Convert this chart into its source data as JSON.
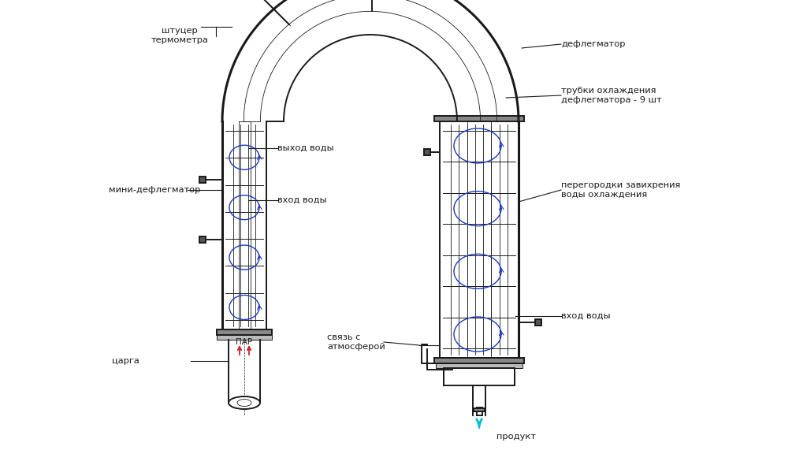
{
  "bg_color": "#ffffff",
  "line_color": "#1a1a1a",
  "blue_color": "#1a3bbf",
  "red_color": "#cc2222",
  "cyan_color": "#00bcd4",
  "labels": {
    "shtucer": "штуцер\nтермометра",
    "deflegmator": "дефлегматор",
    "mini_defleg": "мини-дефлегматор",
    "trubki": "трубки охлаждения\nдефлегматора - 9 шт",
    "vyhod_vody": "выход воды",
    "vhod_vody_left": "вход воды",
    "peregorodki": "перегородки завихрения\nводы охлаждения",
    "tsarga": "царга",
    "par": "ПАР",
    "svyaz": "связь с\nатмосферой",
    "vhod_vody_right": "вход воды",
    "produkt": "продукт"
  }
}
